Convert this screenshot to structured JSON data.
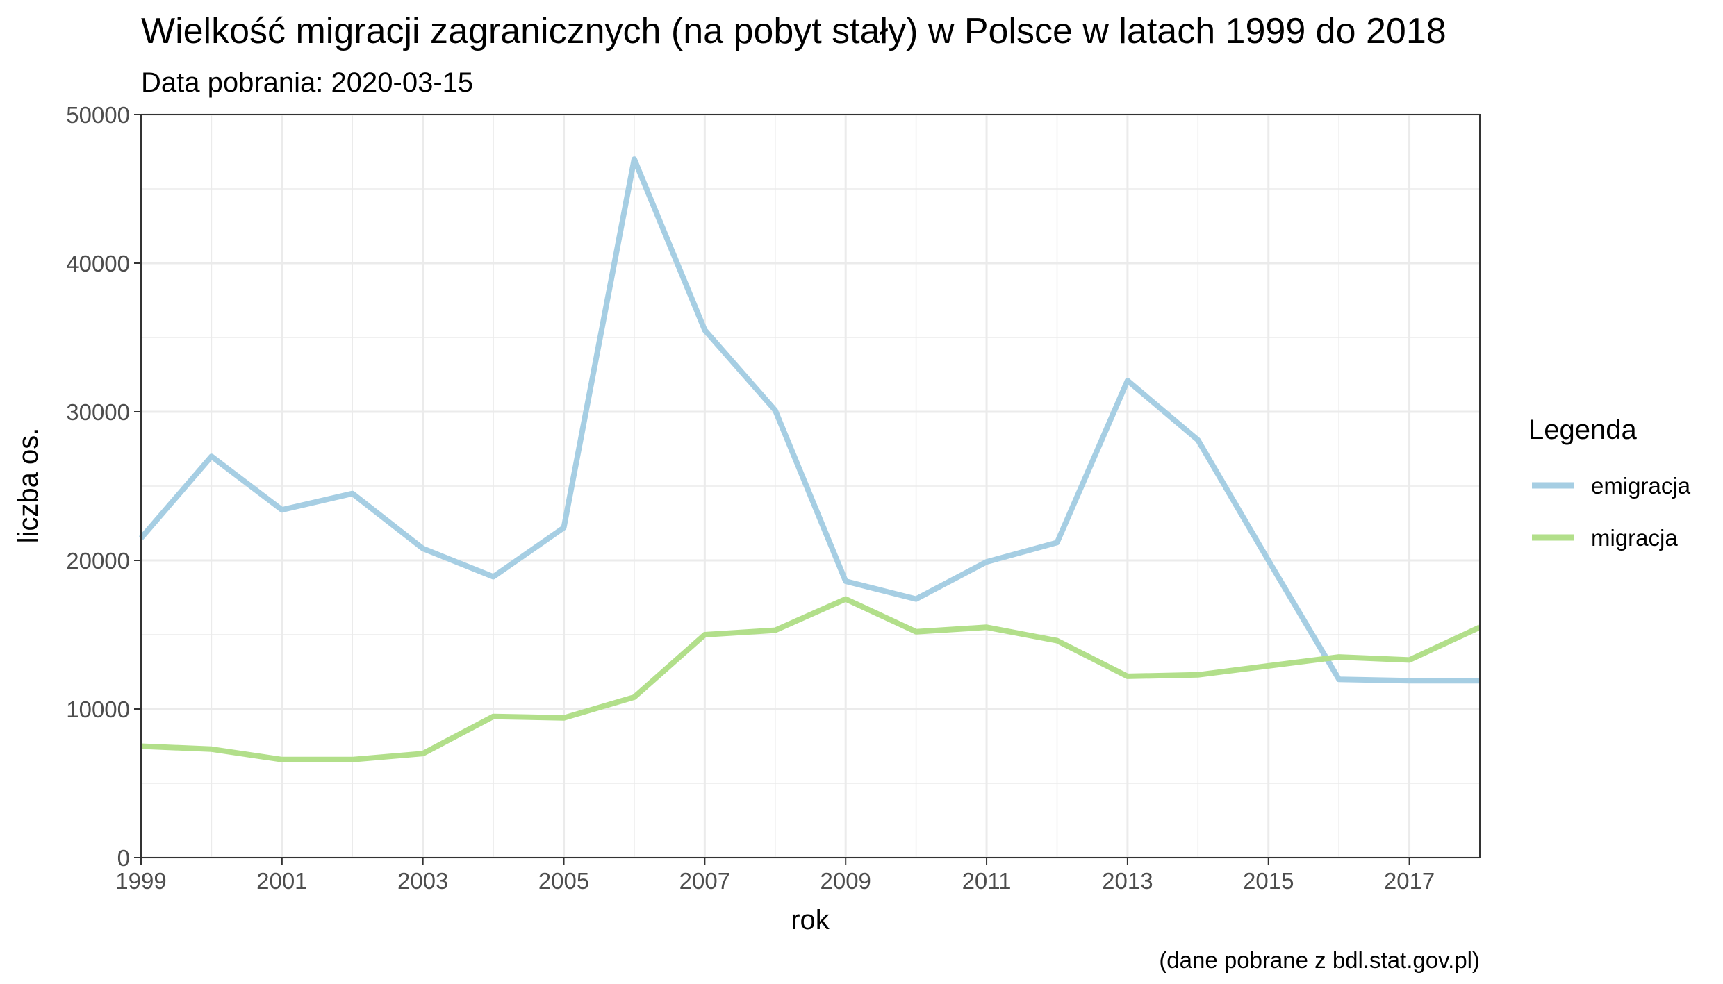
{
  "chart_data": {
    "type": "line",
    "title": "Wielkość migracji zagranicznych (na pobyt stały) w Polsce w latach 1999 do 2018",
    "subtitle": "Data pobrania: 2020-03-15",
    "xlabel": "rok",
    "ylabel": "liczba os.",
    "caption": "(dane pobrane z bdl.stat.gov.pl)",
    "x": [
      1999,
      2000,
      2001,
      2002,
      2003,
      2004,
      2005,
      2006,
      2007,
      2008,
      2009,
      2010,
      2011,
      2012,
      2013,
      2014,
      2015,
      2016,
      2017,
      2018
    ],
    "xlim": [
      1999,
      2018
    ],
    "ylim": [
      0,
      50000
    ],
    "x_ticks": [
      "1999",
      "2001",
      "2003",
      "2005",
      "2007",
      "2009",
      "2011",
      "2013",
      "2015",
      "2017"
    ],
    "y_ticks": [
      "0",
      "10000",
      "20000",
      "30000",
      "40000",
      "50000"
    ],
    "grid": true,
    "legend": {
      "title": "Legenda",
      "placement": "right"
    },
    "series": [
      {
        "name": "emigracja",
        "color": "#a6cee3",
        "values": [
          21500,
          27000,
          23400,
          24500,
          20800,
          18900,
          22200,
          47000,
          35500,
          30100,
          18600,
          17400,
          19900,
          21200,
          32100,
          28100,
          20000,
          12000,
          11900,
          11900
        ]
      },
      {
        "name": "migracja",
        "color": "#b2df8a",
        "values": [
          7500,
          7300,
          6600,
          6600,
          7000,
          9500,
          9400,
          10800,
          15000,
          15300,
          17400,
          15200,
          15500,
          14600,
          12200,
          12300,
          12900,
          13500,
          13300,
          15500
        ]
      }
    ]
  }
}
